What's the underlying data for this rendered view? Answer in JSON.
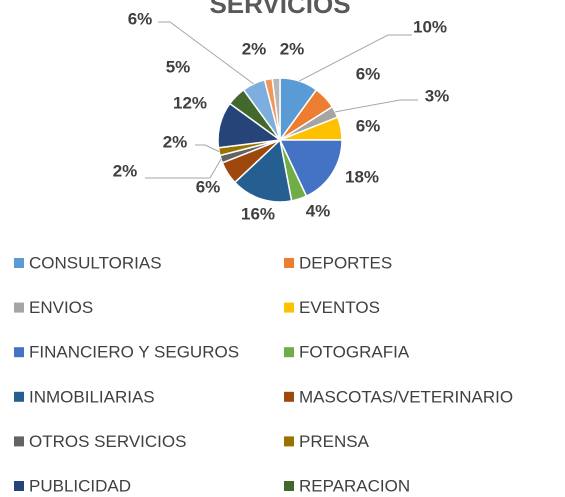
{
  "chart_data": {
    "type": "pie",
    "title": "SERVICIOS",
    "categories": [
      "CONSULTORIAS",
      "DEPORTES",
      "ENVIOS",
      "EVENTOS",
      "FINANCIERO Y SEGUROS",
      "FOTOGRAFIA",
      "INMOBILIARIAS",
      "MASCOTAS/VETERINARIO",
      "OTROS SERVICIOS",
      "PRENSA",
      "PUBLICIDAD",
      "REPARACION",
      null,
      null,
      null
    ],
    "values": [
      10,
      6,
      3,
      6,
      18,
      4,
      16,
      6,
      2,
      2,
      12,
      5,
      6,
      2,
      2
    ],
    "value_labels": [
      "10%",
      "6%",
      "3%",
      "6%",
      "18%",
      "4%",
      "16%",
      "6%",
      "2%",
      "2%",
      "12%",
      "5%",
      "6%",
      "2%",
      "2%"
    ],
    "colors": [
      "#5b9bd5",
      "#ed7d31",
      "#a5a5a5",
      "#ffc000",
      "#4472c4",
      "#70ad47",
      "#255e91",
      "#9e480e",
      "#636363",
      "#997300",
      "#264478",
      "#43682b",
      "#7cafdd",
      "#f1975a",
      "#b7b7b7"
    ]
  }
}
